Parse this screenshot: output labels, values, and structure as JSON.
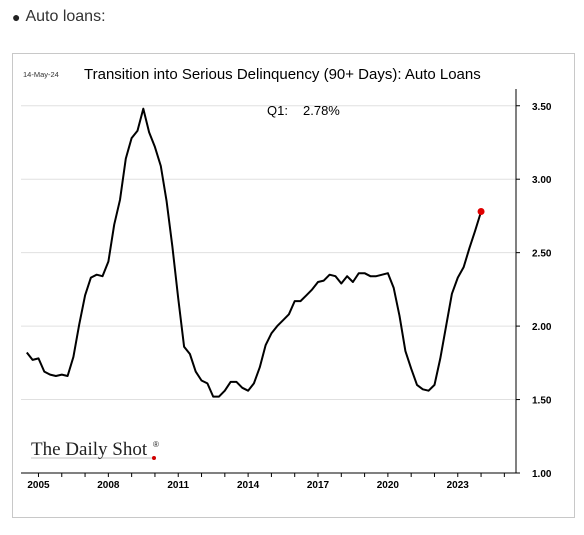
{
  "bullet": {
    "text": "Auto loans:"
  },
  "chart_data": {
    "type": "line",
    "title": "Transition into Serious Delinquency (90+ Days): Auto Loans",
    "date_stamp": "14-May-24",
    "annotation": {
      "label": "Q1:",
      "value": "2.78%"
    },
    "brand": "The Daily Shot",
    "brand_mark": "®",
    "xlabel": "",
    "ylabel": "",
    "x_ticks": [
      "2005",
      "2008",
      "2011",
      "2014",
      "2017",
      "2020",
      "2023"
    ],
    "y_ticks": [
      "1.00",
      "1.50",
      "2.00",
      "2.50",
      "3.00",
      "3.50"
    ],
    "xlim": [
      2004.25,
      2025.5
    ],
    "ylim": [
      1.0,
      3.58
    ],
    "grid": "horizontal",
    "y_axis_side": "right",
    "colors": {
      "line": "#000000",
      "last_point": "#e00000",
      "grid": "#e0e0e0"
    },
    "series": [
      {
        "x": [
          2004.5,
          2004.75,
          2005.0,
          2005.25,
          2005.5,
          2005.75,
          2006.0,
          2006.25,
          2006.5,
          2006.75,
          2007.0,
          2007.25,
          2007.5,
          2007.75,
          2008.0,
          2008.25,
          2008.5,
          2008.75,
          2009.0,
          2009.25,
          2009.5,
          2009.75,
          2010.0,
          2010.25,
          2010.5,
          2010.75,
          2011.0,
          2011.25,
          2011.5,
          2011.75,
          2012.0,
          2012.25,
          2012.5,
          2012.75,
          2013.0,
          2013.25,
          2013.5,
          2013.75,
          2014.0,
          2014.25,
          2014.5,
          2014.75,
          2015.0,
          2015.25,
          2015.5,
          2015.75,
          2016.0,
          2016.25,
          2016.5,
          2016.75,
          2017.0,
          2017.25,
          2017.5,
          2017.75,
          2018.0,
          2018.25,
          2018.5,
          2018.75,
          2019.0,
          2019.25,
          2019.5,
          2019.75,
          2020.0,
          2020.25,
          2020.5,
          2020.75,
          2021.0,
          2021.25,
          2021.5,
          2021.75,
          2022.0,
          2022.25,
          2022.5,
          2022.75,
          2023.0,
          2023.25,
          2023.5,
          2023.75,
          2024.0
        ],
        "values": [
          1.82,
          1.77,
          1.78,
          1.69,
          1.67,
          1.66,
          1.67,
          1.66,
          1.79,
          2.01,
          2.21,
          2.33,
          2.35,
          2.34,
          2.44,
          2.69,
          2.86,
          3.14,
          3.28,
          3.33,
          3.48,
          3.32,
          3.22,
          3.09,
          2.85,
          2.54,
          2.19,
          1.86,
          1.81,
          1.69,
          1.63,
          1.61,
          1.52,
          1.52,
          1.56,
          1.62,
          1.62,
          1.58,
          1.56,
          1.61,
          1.72,
          1.87,
          1.95,
          2.0,
          2.04,
          2.08,
          2.17,
          2.17,
          2.21,
          2.25,
          2.3,
          2.31,
          2.35,
          2.34,
          2.29,
          2.34,
          2.3,
          2.36,
          2.36,
          2.34,
          2.34,
          2.35,
          2.36,
          2.26,
          2.07,
          1.83,
          1.71,
          1.6,
          1.57,
          1.56,
          1.6,
          1.78,
          2.0,
          2.22,
          2.33,
          2.4,
          2.53,
          2.65,
          2.78
        ]
      }
    ]
  }
}
